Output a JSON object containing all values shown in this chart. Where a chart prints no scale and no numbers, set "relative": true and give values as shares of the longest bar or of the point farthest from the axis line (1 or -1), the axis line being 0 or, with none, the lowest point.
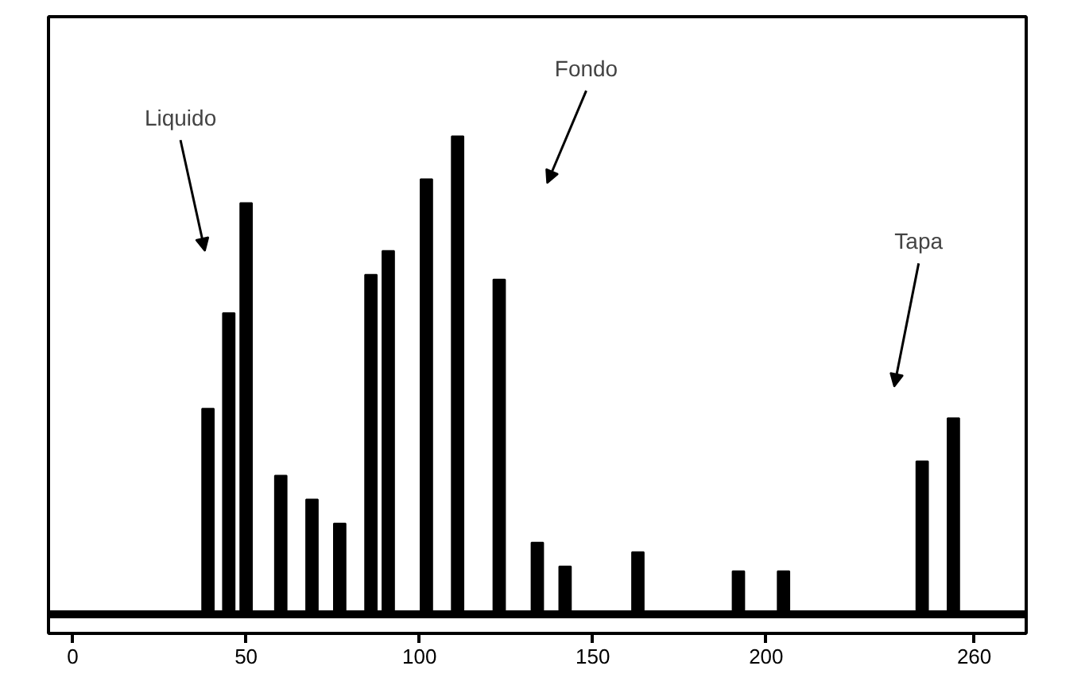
{
  "chart_data": {
    "type": "bar",
    "relative": true,
    "color": "#000000",
    "x": [
      39,
      45,
      50,
      60,
      69,
      77,
      86,
      91,
      102,
      111,
      123,
      134,
      142,
      163,
      192,
      205,
      245,
      254
    ],
    "values": [
      0.43,
      0.63,
      0.86,
      0.29,
      0.24,
      0.19,
      0.71,
      0.76,
      0.91,
      1,
      0.7,
      0.15,
      0.1,
      0.13,
      0.09,
      0.09,
      0.32,
      0.41
    ],
    "xlim": [
      -7,
      275
    ],
    "xticks": [
      0,
      50,
      100,
      150,
      200,
      260
    ],
    "grid": false,
    "tick_labels": "x",
    "annotations": [
      "Liquido",
      "Fondo",
      "Tapa"
    ]
  }
}
